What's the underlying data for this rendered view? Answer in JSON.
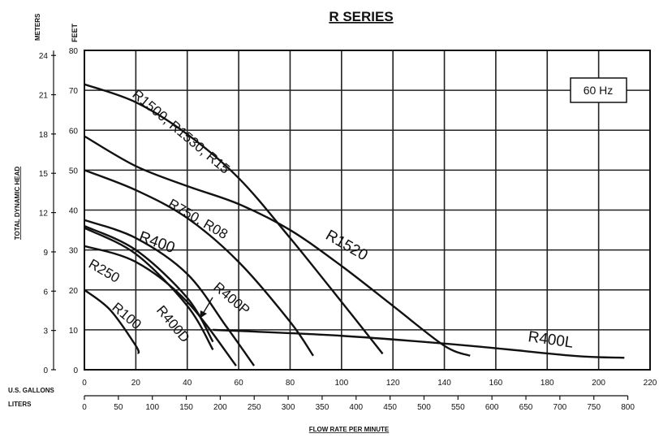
{
  "chart_data": {
    "type": "line",
    "title": "R SERIES",
    "badge": "60 Hz",
    "x_axis": {
      "label": "FLOW RATE PER MINUTE",
      "primary_unit_label": "U.S. GALLONS",
      "secondary_unit_label": "LITERS",
      "range": [
        0,
        220
      ],
      "ticks": [
        "0",
        "20",
        "40",
        "60",
        "80",
        "100",
        "120",
        "140",
        "160",
        "180",
        "200",
        "220"
      ],
      "liters_ticks": [
        "0",
        "50",
        "100",
        "150",
        "200",
        "250",
        "300",
        "350",
        "400",
        "450",
        "500",
        "550",
        "600",
        "650",
        "700",
        "750",
        "800"
      ]
    },
    "y_axis": {
      "label": "TOTAL DYNAMIC HEAD",
      "feet_unit_label": "FEET",
      "meters_unit_label": "METERS",
      "range": [
        0,
        80
      ],
      "feet_ticks": [
        "0",
        "10",
        "20",
        "30",
        "40",
        "50",
        "60",
        "70",
        "80"
      ],
      "meters_ticks": [
        "0",
        "3",
        "6",
        "9",
        "12",
        "15",
        "18",
        "21",
        "24"
      ]
    },
    "grid": true,
    "series": [
      {
        "name": "R1500, R1530, R15",
        "points": [
          [
            0,
            71.5
          ],
          [
            20,
            67
          ],
          [
            40,
            59
          ],
          [
            60,
            48
          ],
          [
            80,
            33
          ],
          [
            100,
            17
          ],
          [
            116,
            4
          ]
        ]
      },
      {
        "name": "R1520",
        "points": [
          [
            0,
            58.5
          ],
          [
            20,
            51
          ],
          [
            40,
            46
          ],
          [
            60,
            41.5
          ],
          [
            80,
            35
          ],
          [
            100,
            26
          ],
          [
            120,
            16
          ],
          [
            140,
            6
          ],
          [
            150,
            3.5
          ]
        ]
      },
      {
        "name": "R750, R08",
        "points": [
          [
            0,
            50
          ],
          [
            20,
            45
          ],
          [
            40,
            38
          ],
          [
            60,
            27
          ],
          [
            80,
            12
          ],
          [
            89,
            3.5
          ]
        ]
      },
      {
        "name": "R400",
        "points": [
          [
            0,
            37.5
          ],
          [
            20,
            33
          ],
          [
            40,
            24
          ],
          [
            55,
            11
          ],
          [
            66,
            1
          ]
        ]
      },
      {
        "name": "R400P",
        "points": [
          [
            0,
            36
          ],
          [
            20,
            30
          ],
          [
            40,
            18
          ],
          [
            50,
            7
          ]
        ]
      },
      {
        "name": "R400D",
        "points": [
          [
            0,
            35.5
          ],
          [
            20,
            29
          ],
          [
            40,
            16
          ],
          [
            50,
            5
          ]
        ]
      },
      {
        "name": "R250",
        "points": [
          [
            0,
            31
          ],
          [
            20,
            27
          ],
          [
            40,
            17
          ],
          [
            59,
            1
          ]
        ]
      },
      {
        "name": "R100",
        "points": [
          [
            0,
            20
          ],
          [
            10,
            15
          ],
          [
            20,
            6
          ],
          [
            21,
            4
          ]
        ]
      },
      {
        "name": "R400L",
        "points": [
          [
            50,
            10
          ],
          [
            100,
            8.5
          ],
          [
            150,
            6
          ],
          [
            190,
            3.5
          ],
          [
            210,
            3
          ]
        ]
      }
    ]
  }
}
